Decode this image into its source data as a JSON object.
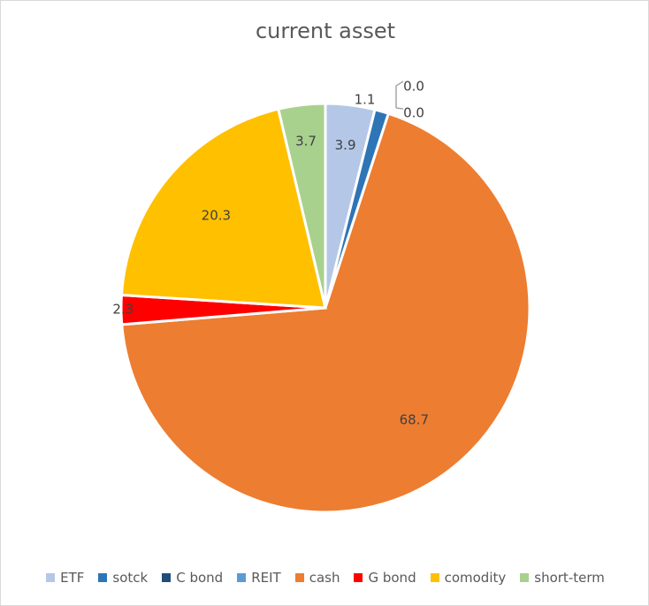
{
  "chart_data": {
    "type": "pie",
    "title": "current asset",
    "categories": [
      "ETF",
      "sotck",
      "C bond",
      "REIT",
      "cash",
      "G bond",
      "comodity",
      "short-term"
    ],
    "values": [
      3.9,
      1.1,
      0.0,
      0.0,
      68.7,
      2.3,
      20.3,
      3.7
    ],
    "value_labels": [
      "3.9",
      "1.1",
      "0.0",
      "0.0",
      "68.7",
      "2.3",
      "20.3",
      "3.7"
    ],
    "colors": [
      "#b4c7e7",
      "#2e75b6",
      "#1f4e79",
      "#5b9bd5",
      "#ed7d31",
      "#ff0000",
      "#ffc000",
      "#a9d18e"
    ],
    "start": "top, clockwise",
    "legend_position": "bottom"
  }
}
